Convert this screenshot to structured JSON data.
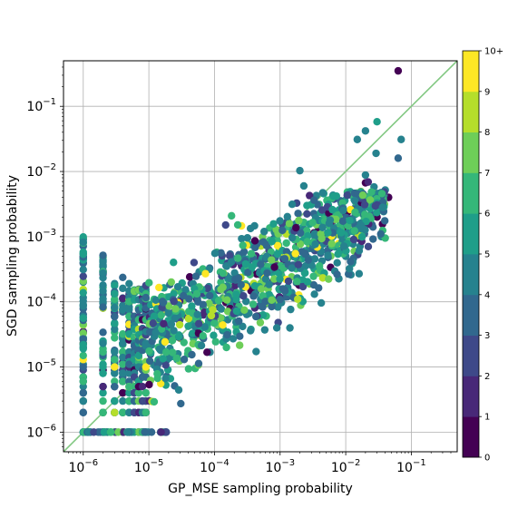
{
  "chart_data": {
    "type": "scatter",
    "title": "",
    "xlabel": "GP_MSE sampling probability",
    "ylabel": "SGD sampling probability",
    "x_scale": "log",
    "y_scale": "log",
    "xlim": [
      5e-07,
      0.5
    ],
    "ylim": [
      5e-07,
      0.5
    ],
    "grid": true,
    "x_ticks": [
      {
        "value": 1e-06,
        "base": "10",
        "exp": "−6"
      },
      {
        "value": 1e-05,
        "base": "10",
        "exp": "−5"
      },
      {
        "value": 0.0001,
        "base": "10",
        "exp": "−4"
      },
      {
        "value": 0.001,
        "base": "10",
        "exp": "−3"
      },
      {
        "value": 0.01,
        "base": "10",
        "exp": "−2"
      },
      {
        "value": 0.1,
        "base": "10",
        "exp": "−1"
      }
    ],
    "y_ticks": [
      {
        "value": 1e-06,
        "base": "10",
        "exp": "−6"
      },
      {
        "value": 1e-05,
        "base": "10",
        "exp": "−5"
      },
      {
        "value": 0.0001,
        "base": "10",
        "exp": "−4"
      },
      {
        "value": 0.001,
        "base": "10",
        "exp": "−3"
      },
      {
        "value": 0.01,
        "base": "10",
        "exp": "−2"
      },
      {
        "value": 0.1,
        "base": "10",
        "exp": "−1"
      }
    ],
    "reference_line": {
      "type": "y=x",
      "color": "#82c882"
    },
    "colorbar": {
      "labels": [
        "0",
        "1",
        "2",
        "3",
        "4",
        "5",
        "6",
        "7",
        "8",
        "9",
        "10+"
      ],
      "colors": [
        "#440154",
        "#482878",
        "#3e4989",
        "#31688e",
        "#26828e",
        "#1f9e89",
        "#35b779",
        "#6ece58",
        "#b5de2b",
        "#fde725"
      ]
    },
    "points_note": "Approximately 1,600 points; values sampled to reproduce the visible density.",
    "points": [
      {
        "x": 0.063,
        "y": 0.35,
        "c": 0
      },
      {
        "x": 0.07,
        "y": 0.031,
        "c": 4
      },
      {
        "x": 0.063,
        "y": 0.016,
        "c": 3
      },
      {
        "x": 0.03,
        "y": 0.058,
        "c": 5
      },
      {
        "x": 0.02,
        "y": 0.042,
        "c": 4
      },
      {
        "x": 0.015,
        "y": 0.031,
        "c": 4
      },
      {
        "x": 0.029,
        "y": 0.019,
        "c": 4
      },
      {
        "x": 0.02,
        "y": 0.0088,
        "c": 4
      },
      {
        "x": 0.02,
        "y": 0.0067,
        "c": 0
      },
      {
        "x": 0.022,
        "y": 0.0069,
        "c": 1
      },
      {
        "x": 0.027,
        "y": 0.0058,
        "c": 4
      },
      {
        "x": 0.035,
        "y": 0.0045,
        "c": 4
      },
      {
        "x": 0.04,
        "y": 0.0052,
        "c": 4
      },
      {
        "x": 0.045,
        "y": 0.004,
        "c": 0
      },
      {
        "x": 0.002,
        "y": 0.0103,
        "c": 4
      },
      {
        "x": 0.0036,
        "y": 0.0016,
        "c": 0
      },
      {
        "x": 0.0045,
        "y": 0.0016,
        "c": 4
      },
      {
        "x": 0.014,
        "y": 0.0022,
        "c": 4
      },
      {
        "x": 0.03,
        "y": 0.002,
        "c": 0
      },
      {
        "x": 0.013,
        "y": 0.0016,
        "c": 5
      },
      {
        "x": 0.035,
        "y": 0.001,
        "c": 4
      },
      {
        "x": 0.04,
        "y": 0.00095,
        "c": 6
      },
      {
        "x": 0.01,
        "y": 0.0005,
        "c": 4
      },
      {
        "x": 0.012,
        "y": 0.00026,
        "c": 4
      },
      {
        "x": 0.0135,
        "y": 0.0006,
        "c": 7
      },
      {
        "x": 0.016,
        "y": 0.00027,
        "c": 4
      },
      {
        "x": 0.0023,
        "y": 0.006,
        "c": 4
      }
    ]
  }
}
